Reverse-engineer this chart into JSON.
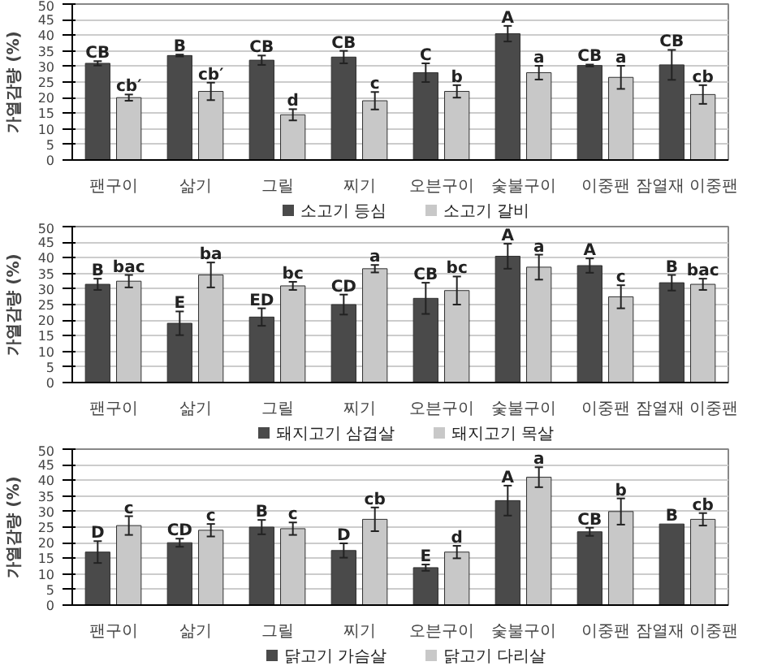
{
  "chart_data": [
    {
      "type": "bar",
      "ylabel": "가열감량 (%)",
      "categories": [
        "팬구이",
        "삶기",
        "그릴",
        "찌기",
        "오븐구이",
        "숯불구이",
        "이중팬",
        "잠열재 이중팬"
      ],
      "ylim": [
        0,
        50
      ],
      "yticks": [
        0,
        5,
        10,
        15,
        20,
        25,
        30,
        35,
        40,
        45,
        50
      ],
      "grid": "y",
      "legend": "bottom",
      "series": [
        {
          "name": "소고기 등심",
          "color": "#4a4a4a",
          "values": [
            31,
            33.5,
            32,
            33,
            28,
            40.5,
            30.3,
            30.5
          ],
          "errors": [
            0.7,
            0.3,
            1.5,
            2,
            3,
            2.5,
            0.3,
            4.8
          ],
          "value_labels": [
            "CB",
            "B",
            "CB",
            "CB",
            "C",
            "A",
            "CB",
            "CB"
          ]
        },
        {
          "name": "소고기 갈비",
          "color": "#c8c8c8",
          "values": [
            20,
            22,
            14.5,
            19,
            22,
            28,
            26.5,
            21
          ],
          "errors": [
            1,
            2.8,
            1.8,
            2.8,
            2,
            2.2,
            3.7,
            3
          ],
          "value_labels": [
            "cb′",
            "cb′",
            "d",
            "c",
            "b",
            "a",
            "a",
            "cb"
          ]
        }
      ]
    },
    {
      "type": "bar",
      "ylabel": "가열감량 (%)",
      "categories": [
        "팬구이",
        "삶기",
        "그릴",
        "찌기",
        "오븐구이",
        "숯불구이",
        "이중팬",
        "잠열재 이중팬"
      ],
      "ylim": [
        0,
        50
      ],
      "yticks": [
        0,
        5,
        10,
        15,
        20,
        25,
        30,
        35,
        40,
        45,
        50
      ],
      "grid": "y",
      "legend": "bottom",
      "series": [
        {
          "name": "돼지고기 삼겹살",
          "color": "#4a4a4a",
          "values": [
            31.5,
            19,
            21,
            25,
            27,
            40.5,
            37.5,
            32
          ],
          "errors": [
            1.8,
            3.8,
            2.8,
            3.2,
            5,
            4,
            2.3,
            2.5
          ],
          "value_labels": [
            "B",
            "E",
            "ED",
            "CD",
            "CB",
            "A",
            "A",
            "B"
          ]
        },
        {
          "name": "돼지고기 목살",
          "color": "#c8c8c8",
          "values": [
            32.5,
            34.5,
            31,
            36.5,
            29.5,
            37,
            27.5,
            31.5
          ],
          "errors": [
            2,
            4,
            1.3,
            1.2,
            4.5,
            4,
            3.7,
            1.8
          ],
          "value_labels": [
            "bac",
            "ba",
            "bc",
            "a",
            "bc",
            "a",
            "c",
            "bac"
          ]
        }
      ]
    },
    {
      "type": "bar",
      "ylabel": "가열감량 (%)",
      "categories": [
        "팬구이",
        "삶기",
        "그릴",
        "찌기",
        "오븐구이",
        "숯불구이",
        "이중팬",
        "잠열재 이중팬"
      ],
      "ylim": [
        0,
        50
      ],
      "yticks": [
        0,
        5,
        10,
        15,
        20,
        25,
        30,
        35,
        40,
        45,
        50
      ],
      "grid": "y",
      "legend": "bottom",
      "series": [
        {
          "name": "닭고기 가슴살",
          "color": "#4a4a4a",
          "values": [
            17,
            20,
            25,
            17.5,
            12,
            33.5,
            23.5,
            26
          ],
          "errors": [
            3.5,
            1.3,
            2.3,
            2.3,
            1,
            4.8,
            1.3,
            null
          ],
          "value_labels": [
            "D",
            "CD",
            "B",
            "D",
            "E",
            "A",
            "CB",
            "B"
          ]
        },
        {
          "name": "닭고기 다리살",
          "color": "#c8c8c8",
          "values": [
            25.5,
            24,
            24.5,
            27.5,
            17,
            41,
            30,
            27.5
          ],
          "errors": [
            3,
            2,
            2,
            3.8,
            2,
            3.2,
            4.2,
            2
          ],
          "value_labels": [
            "c",
            "c",
            "c",
            "cb",
            "d",
            "a",
            "b",
            "cb"
          ]
        }
      ]
    }
  ]
}
